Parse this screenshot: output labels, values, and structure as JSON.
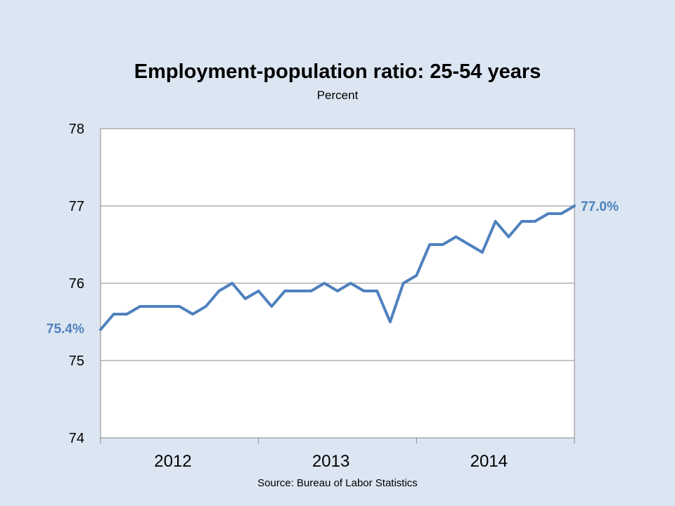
{
  "chart_data": {
    "type": "line",
    "title": "Employment-population ratio: 25-54 years",
    "subtitle": "Percent",
    "source": "Source: Bureau of Labor Statistics",
    "ylim": [
      74,
      78
    ],
    "yticks": [
      "74",
      "75",
      "76",
      "77",
      "78"
    ],
    "xticks": [
      "2012",
      "2013",
      "2014"
    ],
    "grid": true,
    "series_color": "#4f81bd",
    "series": [
      {
        "values": [
          75.4,
          75.6,
          75.6,
          75.7,
          75.7,
          75.7,
          75.7,
          75.6,
          75.7,
          75.9,
          76.0,
          75.8,
          75.9,
          75.7,
          75.9,
          75.9,
          75.9,
          76.0,
          75.9,
          76.0,
          75.9,
          75.9,
          75.5,
          76.0,
          76.1,
          76.5,
          76.5,
          76.6,
          76.5,
          76.4,
          76.8,
          76.6,
          76.8,
          76.8,
          76.9,
          76.9,
          77.0
        ]
      }
    ],
    "annotations": {
      "start": "75.4%",
      "end": "77.0%"
    }
  }
}
